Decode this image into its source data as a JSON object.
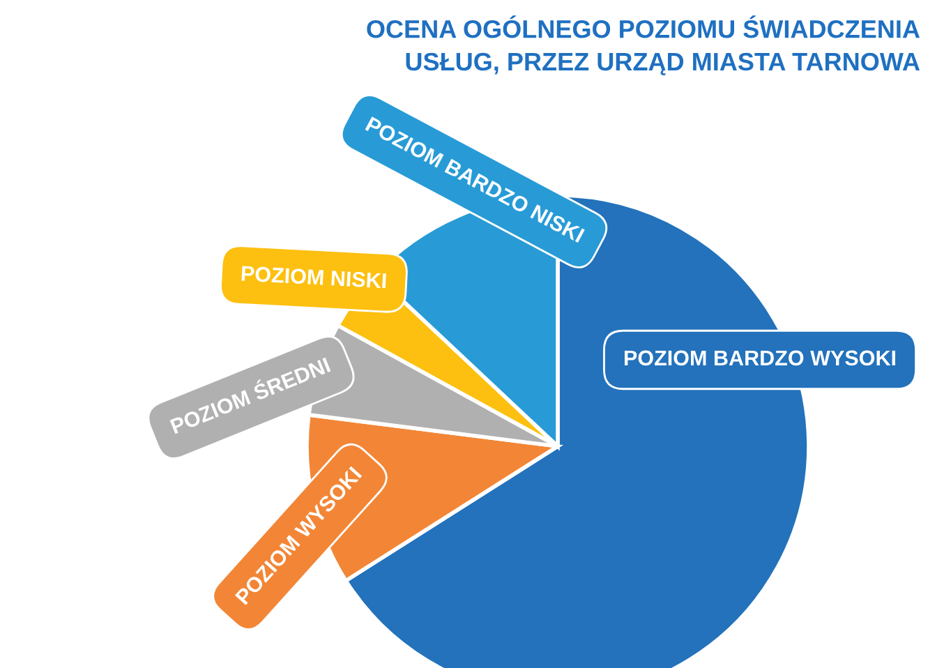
{
  "chart_data": {
    "type": "pie",
    "title": "OCENA OGÓLNEGO POZIOMU ŚWIADCZENIA\nUSŁUG, PRZEZ URZĄD MIASTA TARNOWA",
    "categories": [
      "POZIOM BARDZO WYSOKI",
      "POZIOM WYSOKI",
      "POZIOM ŚREDNI",
      "POZIOM NISKI",
      "POZIOM BARDZO NISKI"
    ],
    "values": [
      66,
      11,
      6,
      4,
      13
    ],
    "colors": [
      "#2372bb",
      "#f28636",
      "#b0b0b0",
      "#fdc010",
      "#289bd6"
    ]
  }
}
